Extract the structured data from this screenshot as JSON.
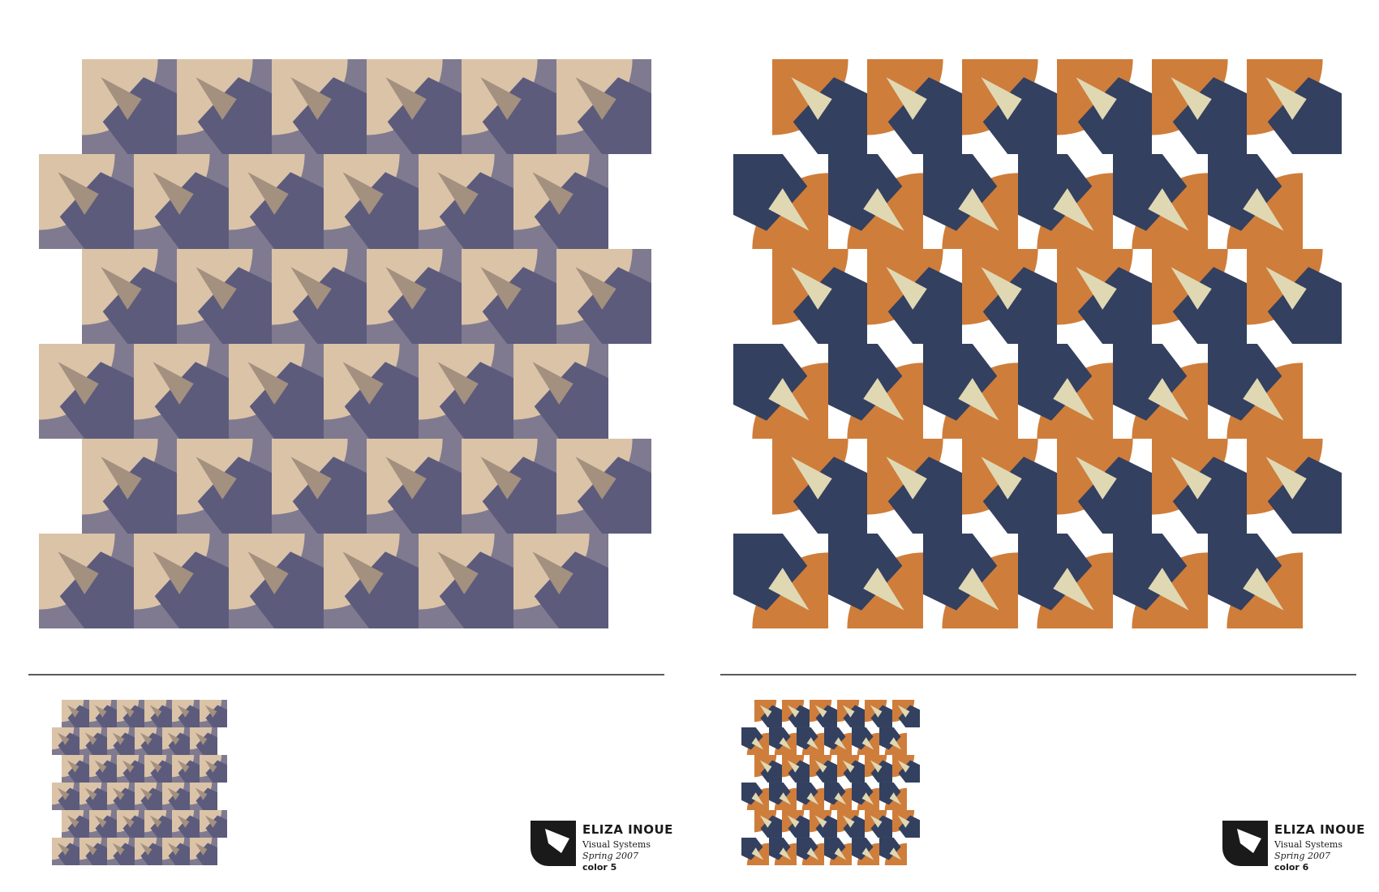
{
  "boards": [
    {
      "id": "color-5",
      "colors": {
        "base": "#7f7a8f",
        "quarter": "#dbc3a8",
        "blade": "#5c5b7c",
        "overlap": "#a3907e"
      },
      "brand": {
        "name": "ELIZA INOUE",
        "line1": "Visual Systems",
        "line2": "Spring 2007",
        "line3": "color 5"
      }
    },
    {
      "id": "color-6",
      "colors": {
        "base": "#ffffff",
        "quarter": "#cf7d3b",
        "blade": "#33405f",
        "overlap": "#e0d8b3",
        "outline": "#cccccc"
      },
      "brand": {
        "name": "ELIZA INOUE",
        "line1": "Visual Systems",
        "line2": "Spring 2007",
        "line3": "color 6"
      }
    }
  ]
}
